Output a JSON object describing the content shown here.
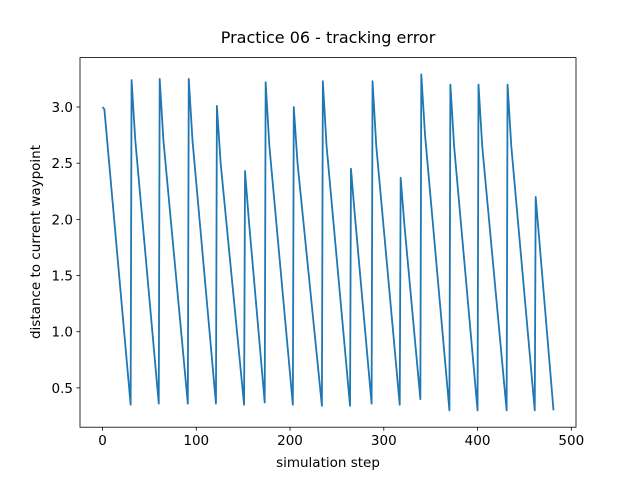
{
  "chart_data": {
    "type": "line",
    "title": "Practice 06 - tracking error",
    "xlabel": "simulation step",
    "ylabel": "distance to current waypoint",
    "x": [
      0,
      2,
      30,
      31,
      35,
      60,
      61,
      65,
      91,
      92,
      96,
      121,
      122,
      126,
      151,
      152,
      156,
      173,
      174,
      178,
      203,
      204,
      208,
      234,
      235,
      239,
      264,
      265,
      269,
      287,
      288,
      292,
      317,
      318,
      322,
      339,
      340,
      344,
      370,
      371,
      375,
      400,
      401,
      405,
      431,
      432,
      436,
      461,
      462,
      466,
      481
    ],
    "series": [
      {
        "color": "#1f77b4",
        "values": [
          3.0,
          2.98,
          0.35,
          3.24,
          2.7,
          0.36,
          3.25,
          2.7,
          0.36,
          3.25,
          2.7,
          0.36,
          3.01,
          2.5,
          0.35,
          2.43,
          2.0,
          0.37,
          3.22,
          2.65,
          0.35,
          3.0,
          2.5,
          0.34,
          3.23,
          2.65,
          0.34,
          2.45,
          2.05,
          0.36,
          3.23,
          2.65,
          0.35,
          2.37,
          1.95,
          0.4,
          3.29,
          2.75,
          0.3,
          3.2,
          2.65,
          0.3,
          3.2,
          2.65,
          0.3,
          3.2,
          2.65,
          0.3,
          2.2,
          1.8,
          0.3
        ]
      }
    ],
    "xlim": [
      -24,
      505
    ],
    "ylim": [
      0.15,
      3.44
    ],
    "xticks": [
      0,
      100,
      200,
      300,
      400,
      500
    ],
    "yticks": [
      0.5,
      {
        "value": 1.0,
        "label": "1.0"
      },
      1.5,
      {
        "value": 2.0,
        "label": "2.0"
      },
      2.5,
      {
        "value": 3.0,
        "label": "3.0"
      }
    ]
  }
}
